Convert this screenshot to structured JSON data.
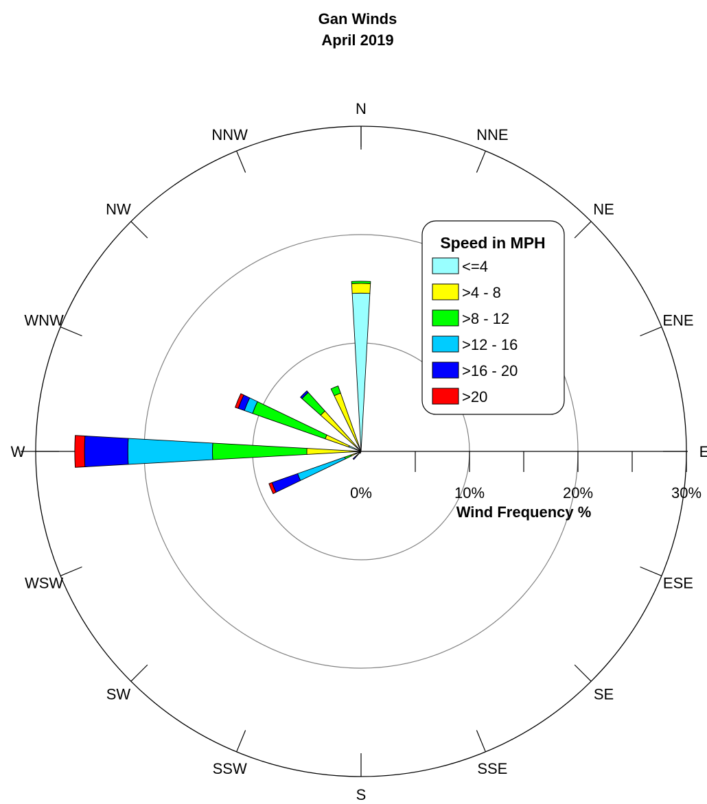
{
  "chart_data": {
    "type": "polar-bar",
    "title": "Gan Winds",
    "subtitle": "April 2019",
    "directions": [
      "N",
      "NNE",
      "NE",
      "ENE",
      "E",
      "ESE",
      "SE",
      "SSE",
      "S",
      "SSW",
      "SW",
      "WSW",
      "W",
      "WNW",
      "NW",
      "NNW"
    ],
    "radial_axis": {
      "label": "Wind Frequency %",
      "min": 0,
      "max": 30,
      "ticks": [
        0,
        10,
        20,
        30
      ],
      "tick_labels": [
        "0%",
        "10%",
        "20%",
        "30%"
      ],
      "grid_circles": [
        10,
        20
      ],
      "minor_ticks": [
        5,
        15,
        25
      ]
    },
    "legend": {
      "title": "Speed in MPH",
      "placement": "upper-right"
    },
    "series": [
      {
        "name": "<=4",
        "color": "#99ffff",
        "values": [
          14.6,
          0,
          0,
          0,
          0,
          0,
          0,
          0,
          0,
          0,
          0,
          0.2,
          0,
          1.2,
          0.5,
          0
        ]
      },
      {
        "name": ">4 - 8",
        "color": "#ffff00",
        "values": [
          0.9,
          0,
          0,
          0,
          0,
          0,
          0,
          0,
          0,
          0.2,
          0.4,
          0.8,
          5.0,
          2.3,
          4.5,
          5.7
        ]
      },
      {
        "name": ">8 - 12",
        "color": "#00ff00",
        "values": [
          0.2,
          0,
          0,
          0,
          0,
          0,
          0,
          0,
          0,
          0,
          0.2,
          0.6,
          8.7,
          7.1,
          2.3,
          0.7
        ]
      },
      {
        "name": ">12 - 16",
        "color": "#00ccff",
        "values": [
          0,
          0,
          0,
          0,
          0,
          0,
          0,
          0,
          0,
          0,
          0.1,
          4.6,
          7.8,
          0.8,
          0,
          0
        ]
      },
      {
        "name": ">16 - 20",
        "color": "#0000ff",
        "values": [
          0,
          0,
          0,
          0,
          0,
          0,
          0,
          0,
          0,
          0,
          0.3,
          2.5,
          4.0,
          0.6,
          0.2,
          0
        ]
      },
      {
        "name": ">20",
        "color": "#ff0000",
        "values": [
          0,
          0,
          0,
          0,
          0,
          0,
          0,
          0,
          0,
          0,
          0,
          0.3,
          0.9,
          0.3,
          0,
          0
        ]
      }
    ]
  }
}
